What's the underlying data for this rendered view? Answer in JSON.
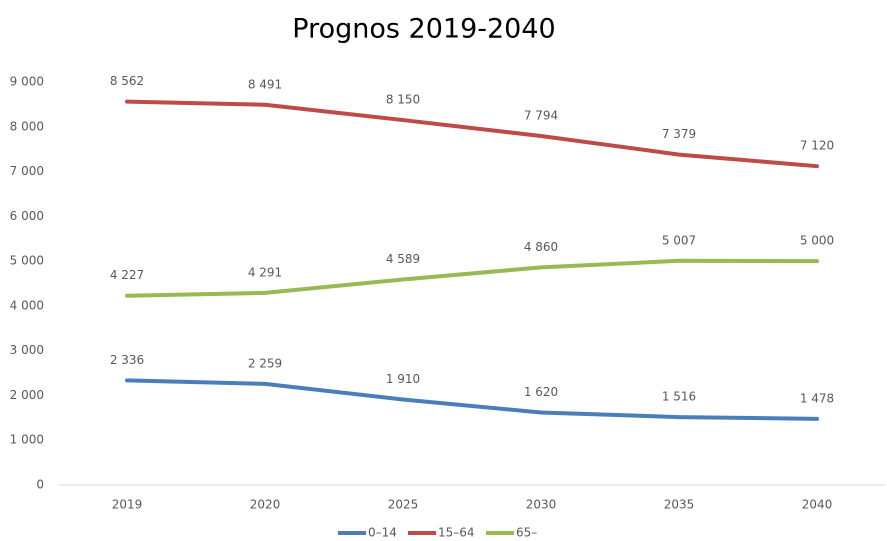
{
  "chart_data": {
    "type": "line",
    "title": "Prognos 2019-2040",
    "categories": [
      "2019",
      "2020",
      "2025",
      "2030",
      "2035",
      "2040"
    ],
    "series": [
      {
        "name": "0–14",
        "color": "#4a7ebb",
        "values": [
          2336,
          2259,
          1910,
          1620,
          1516,
          1478
        ],
        "value_labels": [
          "2 336",
          "2 259",
          "1 910",
          "1 620",
          "1 516",
          "1 478"
        ]
      },
      {
        "name": "15–64",
        "color": "#be4b48",
        "values": [
          8562,
          8491,
          8150,
          7794,
          7379,
          7120
        ],
        "value_labels": [
          "8 562",
          "8 491",
          "8 150",
          "7 794",
          "7 379",
          "7 120"
        ]
      },
      {
        "name": "65–",
        "color": "#98b954",
        "values": [
          4227,
          4291,
          4589,
          4860,
          5007,
          5000
        ],
        "value_labels": [
          "4 227",
          "4 291",
          "4 589",
          "4 860",
          "5 007",
          "5 000"
        ]
      }
    ],
    "ylim": [
      0,
      9000
    ],
    "yticks": [
      0,
      {
        "value": 1000,
        "label": "1 000"
      },
      {
        "value": 2000,
        "label": "2 000"
      },
      {
        "value": 3000,
        "label": "3 000"
      },
      {
        "value": 4000,
        "label": "4 000"
      },
      {
        "value": 5000,
        "label": "5 000"
      },
      {
        "value": 6000,
        "label": "6 000"
      },
      {
        "value": 7000,
        "label": "7 000"
      },
      {
        "value": 8000,
        "label": "8 000"
      },
      {
        "value": 9000,
        "label": "9 000"
      }
    ],
    "grid": false,
    "legend": "bottom"
  }
}
